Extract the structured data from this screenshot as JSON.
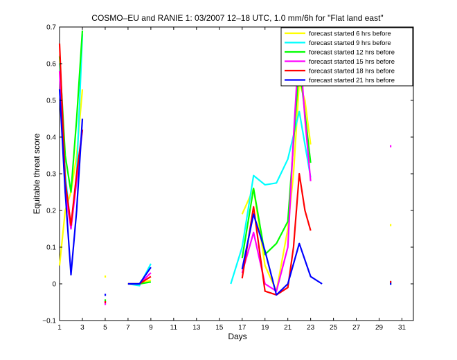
{
  "chart_data": {
    "type": "line",
    "title": "COSMO–EU and RANIE 1: 03/2007 12–18 UTC, 1.0 mm/6h for \"Flat land east\"",
    "xlabel": "Days",
    "ylabel": "Equitable threat score",
    "xlim": [
      1,
      32
    ],
    "ylim": [
      -0.1,
      0.7
    ],
    "xticks": [
      1,
      3,
      5,
      7,
      9,
      11,
      13,
      15,
      17,
      19,
      21,
      23,
      25,
      27,
      29,
      31
    ],
    "yticks": [
      -0.1,
      0,
      0.1,
      0.2,
      0.3,
      0.4,
      0.5,
      0.6,
      0.7
    ],
    "xtick_labels": [
      "1",
      "3",
      "5",
      "7",
      "9",
      "11",
      "13",
      "15",
      "17",
      "19",
      "21",
      "23",
      "25",
      "27",
      "29",
      "31"
    ],
    "ytick_labels": [
      "−0.1",
      "0",
      "0.1",
      "0.2",
      "0.3",
      "0.4",
      "0.5",
      "0.6",
      "0.7"
    ],
    "legend_position": "top-right",
    "grid": false,
    "series": [
      {
        "name": "forecast started 6 hrs before",
        "color": "#ffff00",
        "segments": [
          [
            [
              1,
              0.05
            ],
            [
              1.5,
              0.2
            ],
            [
              2,
              0.25
            ],
            [
              2.5,
              0.35
            ],
            [
              3,
              0.53
            ]
          ],
          [
            [
              5,
              0.02
            ]
          ],
          [
            [
              7,
              0.0
            ],
            [
              8,
              0.0
            ],
            [
              9,
              0.01
            ]
          ],
          [
            [
              17,
              0.19
            ],
            [
              18,
              0.26
            ],
            [
              19,
              0.05
            ],
            [
              20,
              -0.02
            ],
            [
              21,
              0.15
            ],
            [
              21.5,
              0.3
            ],
            [
              22,
              0.55
            ],
            [
              22.5,
              0.5
            ],
            [
              23,
              0.38
            ]
          ],
          [
            [
              30,
              0.16
            ]
          ]
        ]
      },
      {
        "name": "forecast started 9 hrs before",
        "color": "#00ffff",
        "segments": [
          [
            [
              1,
              0.6
            ],
            [
              1.5,
              0.3
            ],
            [
              2,
              0.15
            ],
            [
              2.5,
              0.3
            ],
            [
              3,
              0.68
            ]
          ],
          [
            [
              5,
              -0.05
            ]
          ],
          [
            [
              7,
              0.0
            ],
            [
              8,
              -0.005
            ],
            [
              9,
              0.055
            ]
          ],
          [
            [
              16,
              0.0
            ],
            [
              17,
              0.1
            ],
            [
              18,
              0.295
            ],
            [
              19,
              0.27
            ],
            [
              20,
              0.275
            ],
            [
              21,
              0.34
            ],
            [
              22,
              0.47
            ],
            [
              23,
              0.29
            ]
          ],
          [
            [
              30,
              0.005
            ]
          ]
        ]
      },
      {
        "name": "forecast started 12 hrs before",
        "color": "#00ff00",
        "segments": [
          [
            [
              1,
              0.62
            ],
            [
              1.5,
              0.35
            ],
            [
              2,
              0.25
            ],
            [
              2.5,
              0.45
            ],
            [
              3,
              0.69
            ]
          ],
          [
            [
              5,
              -0.045
            ]
          ],
          [
            [
              7,
              0.0
            ],
            [
              8,
              0.0
            ],
            [
              9,
              0.005
            ]
          ],
          [
            [
              17,
              0.07
            ],
            [
              18,
              0.26
            ],
            [
              19,
              0.08
            ],
            [
              20,
              0.11
            ],
            [
              21,
              0.17
            ],
            [
              22,
              0.6
            ],
            [
              23,
              0.33
            ]
          ],
          [
            [
              30,
              0.0
            ]
          ]
        ]
      },
      {
        "name": "forecast started 15 hrs before",
        "color": "#ff00ff",
        "segments": [
          [
            [
              1,
              0.58
            ],
            [
              1.5,
              0.25
            ],
            [
              2,
              0.15
            ],
            [
              2.5,
              0.28
            ],
            [
              3,
              0.42
            ]
          ],
          [
            [
              5,
              -0.055
            ]
          ],
          [
            [
              7,
              0.0
            ],
            [
              8,
              0.0
            ],
            [
              9,
              0.03
            ]
          ],
          [
            [
              17,
              0.03
            ],
            [
              18,
              0.14
            ],
            [
              19,
              0.0
            ],
            [
              20,
              -0.02
            ],
            [
              21,
              0.1
            ],
            [
              21.5,
              0.4
            ],
            [
              22,
              0.665
            ],
            [
              22.5,
              0.45
            ],
            [
              23,
              0.28
            ]
          ],
          [
            [
              30,
              0.375
            ]
          ]
        ]
      },
      {
        "name": "forecast started 18 hrs before",
        "color": "#ff0000",
        "segments": [
          [
            [
              1,
              0.655
            ],
            [
              1.5,
              0.28
            ],
            [
              2,
              0.16
            ],
            [
              2.5,
              0.3
            ],
            [
              3,
              0.42
            ]
          ],
          [
            [
              5,
              -0.05
            ]
          ],
          [
            [
              7,
              0.0
            ],
            [
              8,
              0.0
            ],
            [
              9,
              0.02
            ]
          ],
          [
            [
              17,
              0.015
            ],
            [
              18,
              0.21
            ],
            [
              19,
              -0.02
            ],
            [
              20,
              -0.03
            ],
            [
              21,
              -0.01
            ],
            [
              21.5,
              0.1
            ],
            [
              22,
              0.3
            ],
            [
              22.5,
              0.2
            ],
            [
              23,
              0.145
            ]
          ],
          [
            [
              30,
              0.005
            ]
          ]
        ]
      },
      {
        "name": "forecast started 21 hrs before",
        "color": "#0000ff",
        "segments": [
          [
            [
              1,
              0.53
            ],
            [
              1.5,
              0.25
            ],
            [
              2,
              0.025
            ],
            [
              2.5,
              0.2
            ],
            [
              3,
              0.45
            ]
          ],
          [
            [
              5,
              -0.03
            ]
          ],
          [
            [
              7,
              0.0
            ],
            [
              8,
              0.0
            ],
            [
              9,
              0.045
            ]
          ],
          [
            [
              17,
              0.04
            ],
            [
              18,
              0.19
            ],
            [
              19,
              0.09
            ],
            [
              20,
              -0.03
            ],
            [
              21,
              0.0
            ],
            [
              22,
              0.11
            ],
            [
              23,
              0.02
            ],
            [
              24,
              0.0
            ]
          ],
          [
            [
              30,
              0.0
            ]
          ]
        ]
      }
    ]
  }
}
